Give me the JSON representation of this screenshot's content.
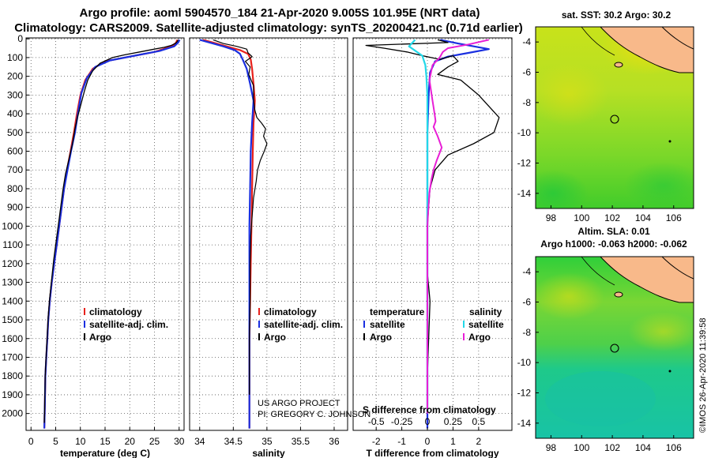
{
  "header": {
    "line1": "Argo profile: aoml 5904570_184 21-Apr-2020 9.005S 101.95E (NRT data)",
    "line2": "Climatology: CARS2009. Satellite-adjusted climatology: synTS_20200421.nc (0.71d earlier)"
  },
  "credits": {
    "project": "US ARGO PROJECT",
    "pi": "PI: GREGORY C. JOHNSON",
    "imos": "©IMOS 26-Apr-2020 11:39:58"
  },
  "colors": {
    "climatology": "#e8211b",
    "satellite_adj": "#1a2fe0",
    "argo": "#000000",
    "salinity_argo": "#e81fd6",
    "salinity_sat": "#22d8e8",
    "land": "#f8b98a"
  },
  "chart_data": [
    {
      "id": "temperature",
      "type": "line",
      "xlabel": "temperature (deg C)",
      "ylabel": "",
      "xlim": [
        -1,
        31
      ],
      "ylim": [
        2090,
        -5
      ],
      "xticks": [
        0,
        5,
        10,
        15,
        20,
        25,
        30
      ],
      "yticks": [
        0,
        100,
        200,
        300,
        400,
        500,
        600,
        700,
        800,
        900,
        1000,
        1100,
        1200,
        1300,
        1400,
        1500,
        1600,
        1700,
        1800,
        1900,
        2000
      ],
      "legend": [
        {
          "label": "climatology",
          "color": "#e8211b"
        },
        {
          "label": "satellite-adj. clim.",
          "color": "#1a2fe0"
        },
        {
          "label": "Argo",
          "color": "#000000"
        }
      ],
      "series": [
        {
          "name": "climatology",
          "color": "#e8211b",
          "width": 2.2,
          "x": [
            29.6,
            29.4,
            28.5,
            25,
            20,
            15,
            12.5,
            11,
            10,
            9.3,
            8.7,
            8,
            7.3,
            6.7,
            6.2,
            5.7,
            5.2,
            4.7,
            4.2,
            3.8,
            3.5,
            3.3,
            3.1,
            2.9,
            2.8,
            2.7
          ],
          "y": [
            5,
            20,
            40,
            70,
            95,
            120,
            160,
            220,
            300,
            400,
            500,
            600,
            700,
            800,
            900,
            1000,
            1100,
            1200,
            1300,
            1400,
            1500,
            1600,
            1700,
            1800,
            1950,
            2080
          ]
        },
        {
          "name": "satellite-adj. clim.",
          "color": "#1a2fe0",
          "width": 2.2,
          "x": [
            30.1,
            29.8,
            29,
            26,
            21,
            16,
            13,
            11.3,
            10.2,
            9.5,
            8.9,
            8.1,
            7.4,
            6.7,
            6.2,
            5.7,
            5.2,
            4.7,
            4.2,
            3.8,
            3.5,
            3.3,
            3.1,
            2.9,
            2.8,
            2.7
          ],
          "y": [
            5,
            20,
            40,
            65,
            90,
            115,
            150,
            210,
            290,
            400,
            500,
            600,
            700,
            800,
            900,
            1000,
            1100,
            1200,
            1300,
            1400,
            1500,
            1600,
            1700,
            1800,
            1950,
            2080
          ]
        },
        {
          "name": "Argo",
          "color": "#000000",
          "width": 1.3,
          "x": [
            29.8,
            29.6,
            29.2,
            28.4,
            27,
            25,
            22,
            19,
            16.5,
            14,
            12.5,
            11.5,
            10.8,
            10,
            9.4,
            8.9,
            8.4,
            7.7,
            7,
            6.5,
            6.1,
            5.6,
            5.1,
            4.6,
            4.2,
            3.8,
            3.5,
            3.3,
            3.1,
            2.9,
            2.8,
            2.7
          ],
          "y": [
            5,
            15,
            25,
            35,
            45,
            55,
            70,
            85,
            100,
            130,
            170,
            220,
            280,
            360,
            420,
            480,
            560,
            640,
            720,
            800,
            880,
            980,
            1080,
            1180,
            1280,
            1380,
            1480,
            1580,
            1680,
            1780,
            1900,
            2050
          ]
        }
      ]
    },
    {
      "id": "salinity",
      "type": "line",
      "xlabel": "salinity",
      "xlim": [
        33.85,
        36.2
      ],
      "ylim": [
        2090,
        -5
      ],
      "xticks": [
        34,
        34.5,
        35,
        35.5,
        36
      ],
      "xticklabels": [
        "34",
        "34.5",
        "35",
        "35.5",
        "36"
      ],
      "legend": [
        {
          "label": "climatology",
          "color": "#e8211b"
        },
        {
          "label": "satellite-adj. clim.",
          "color": "#1a2fe0"
        },
        {
          "label": "Argo",
          "color": "#000000"
        }
      ],
      "series": [
        {
          "name": "climatology",
          "color": "#e8211b",
          "width": 2.2,
          "x": [
            34.05,
            34.2,
            34.4,
            34.6,
            34.72,
            34.76,
            34.78,
            34.8,
            34.82,
            34.8,
            34.79,
            34.78,
            34.77,
            34.76,
            34.75,
            34.74,
            34.74,
            34.74,
            34.74
          ],
          "y": [
            5,
            20,
            40,
            60,
            80,
            110,
            160,
            240,
            330,
            450,
            600,
            800,
            1000,
            1200,
            1400,
            1600,
            1800,
            1950,
            2080
          ]
        },
        {
          "name": "satellite-adj. clim.",
          "color": "#1a2fe0",
          "width": 2.2,
          "x": [
            34.0,
            34.15,
            34.35,
            34.52,
            34.6,
            34.64,
            34.7,
            34.75,
            34.8,
            34.78,
            34.76,
            34.75,
            34.74,
            34.74,
            34.74,
            34.74,
            34.74,
            34.74,
            34.74
          ],
          "y": [
            5,
            20,
            40,
            60,
            80,
            110,
            160,
            240,
            330,
            450,
            600,
            800,
            1000,
            1200,
            1400,
            1600,
            1800,
            1950,
            2080
          ]
        },
        {
          "name": "Argo",
          "color": "#000000",
          "width": 1.2,
          "x": [
            34.2,
            34.35,
            34.55,
            34.7,
            34.72,
            34.78,
            34.68,
            34.75,
            34.73,
            34.8,
            34.8,
            34.82,
            34.85,
            34.92,
            34.98,
            34.95,
            35.0,
            34.96,
            34.9,
            34.86,
            34.84,
            34.8,
            34.78,
            34.76,
            34.75,
            34.75,
            34.74,
            34.74,
            34.74
          ],
          "y": [
            5,
            25,
            40,
            55,
            75,
            95,
            120,
            150,
            190,
            250,
            320,
            380,
            420,
            450,
            480,
            520,
            560,
            600,
            650,
            700,
            760,
            850,
            950,
            1050,
            1200,
            1400,
            1600,
            1800,
            1900
          ]
        }
      ]
    },
    {
      "id": "difference",
      "type": "line",
      "xlabel": "T difference from climatology",
      "xlim": [
        -2.9,
        3.3
      ],
      "ylim": [
        2090,
        -5
      ],
      "xticks": [
        -2,
        -1,
        0,
        1,
        2
      ],
      "xticklabels": [
        "-2",
        "-1",
        "0",
        "1",
        "2"
      ],
      "secondary_title": "S difference from climatology",
      "secondary_xlim": [
        -0.725,
        0.825
      ],
      "secondary_xticks": [
        -0.5,
        -0.25,
        0,
        0.25,
        0.5
      ],
      "secondary_xticklabels": [
        "-0.5",
        "-0.25",
        "0",
        "0.25",
        "0.5"
      ],
      "legend_left_title": "temperature",
      "legend_right_title": "salinity",
      "legend_left": [
        {
          "label": "satellite",
          "color": "#1a2fe0"
        },
        {
          "label": "Argo",
          "color": "#000000"
        }
      ],
      "legend_right": [
        {
          "label": "satellite",
          "color": "#22d8e8"
        },
        {
          "label": "Argo",
          "color": "#e81fd6"
        }
      ],
      "series": [
        {
          "name": "T satellite",
          "color": "#1a2fe0",
          "width": 2.2,
          "units": "T",
          "x": [
            0.5,
            1.2,
            2.4,
            1.6,
            0.8,
            0.3,
            0.1,
            0.05,
            0.0,
            0.0,
            0.0,
            0.0,
            0.0,
            0.0,
            0.0
          ],
          "y": [
            5,
            25,
            55,
            75,
            95,
            120,
            180,
            300,
            500,
            800,
            1100,
            1400,
            1700,
            1950,
            2080
          ]
        },
        {
          "name": "T Argo",
          "color": "#000000",
          "width": 1.3,
          "units": "T",
          "x": [
            0.4,
            0.8,
            -2.4,
            -1.7,
            -0.8,
            -0.2,
            0.5,
            1.0,
            1.2,
            0.8,
            0.4,
            1.3,
            2.0,
            2.8,
            2.6,
            1.8,
            0.8,
            0.3,
            0.1,
            0.05,
            0.0,
            0.0,
            0.0,
            0.1,
            0.05,
            0.0,
            0.0
          ],
          "y": [
            5,
            20,
            35,
            50,
            70,
            90,
            110,
            90,
            120,
            150,
            190,
            220,
            300,
            420,
            500,
            560,
            620,
            700,
            800,
            900,
            1000,
            1100,
            1250,
            1400,
            1600,
            1800,
            2000
          ]
        },
        {
          "name": "S satellite",
          "color": "#22d8e8",
          "width": 2.2,
          "units": "S",
          "x": [
            -0.12,
            -0.18,
            -0.05,
            -0.02,
            -0.01,
            0.0,
            0.0,
            0.0,
            0.0,
            0.0,
            0.0,
            0.0
          ],
          "y": [
            5,
            40,
            90,
            140,
            200,
            300,
            500,
            800,
            1100,
            1400,
            1700,
            2000
          ]
        },
        {
          "name": "S Argo",
          "color": "#e81fd6",
          "width": 2.0,
          "units": "S",
          "x": [
            0.6,
            0.4,
            0.2,
            0.15,
            0.12,
            0.05,
            0.02,
            0.05,
            0.07,
            0.08,
            0.06,
            0.1,
            0.14,
            0.09,
            0.06,
            0.04,
            0.02,
            0.01,
            0.0,
            0.0,
            0.0,
            0.0
          ],
          "y": [
            5,
            30,
            50,
            70,
            100,
            140,
            220,
            330,
            400,
            440,
            470,
            520,
            580,
            650,
            700,
            750,
            820,
            900,
            1000,
            1300,
            1600,
            2000
          ]
        }
      ]
    },
    {
      "id": "sst_map",
      "type": "heatmap",
      "title": "sat. SST: 30.2  Argo: 30.2",
      "xlim": [
        97,
        107.3
      ],
      "ylim": [
        -15,
        -3
      ],
      "xticks": [
        98,
        100,
        102,
        104,
        106
      ],
      "yticks": [
        -4,
        -6,
        -8,
        -10,
        -12,
        -14
      ],
      "marker": {
        "lon": 101.95,
        "lat": -9.005
      }
    },
    {
      "id": "sla_map",
      "type": "heatmap",
      "title": "Altim. SLA: 0.01",
      "subtitle": "Argo h1000: -0.063 h2000: -0.062",
      "xlim": [
        97,
        107.3
      ],
      "ylim": [
        -15,
        -3
      ],
      "xticks": [
        98,
        100,
        102,
        104,
        106
      ],
      "yticks": [
        -4,
        -6,
        -8,
        -10,
        -12,
        -14
      ],
      "marker": {
        "lon": 101.95,
        "lat": -9.005
      }
    }
  ]
}
